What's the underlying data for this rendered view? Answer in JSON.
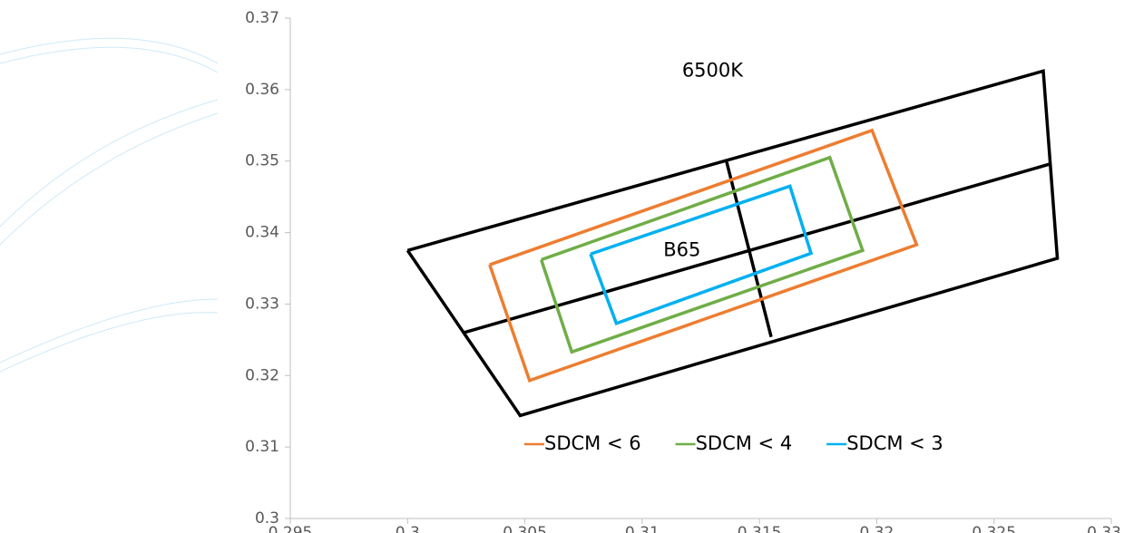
{
  "chart_data": {
    "type": "line",
    "xlim": [
      0.295,
      0.33
    ],
    "ylim": [
      0.3,
      0.37
    ],
    "xticks": [
      0.295,
      0.3,
      0.305,
      0.31,
      0.315,
      0.32,
      0.325,
      0.33
    ],
    "yticks": [
      0.3,
      0.31,
      0.32,
      0.33,
      0.34,
      0.35,
      0.36,
      0.37
    ],
    "annotations": [
      {
        "text": "6500K",
        "x": 0.313,
        "y": 0.3626
      },
      {
        "text": "B65",
        "x": 0.3117,
        "y": 0.3375
      }
    ],
    "series": [
      {
        "color": "#000000",
        "x": [
          0.3,
          0.3271,
          0.3277,
          0.3048,
          0.3
        ],
        "values": [
          0.3375,
          0.3626,
          0.3364,
          0.3144,
          0.3375
        ]
      },
      {
        "color": "#000000",
        "x": [
          0.3024,
          0.3274
        ],
        "values": [
          0.326,
          0.3496
        ]
      },
      {
        "color": "#000000",
        "x": [
          0.3136,
          0.3155
        ],
        "values": [
          0.3499,
          0.3254
        ]
      },
      {
        "name": "SDCM < 6",
        "color": "#ed7d31",
        "x": [
          0.3035,
          0.3198,
          0.3217,
          0.3052,
          0.3035
        ],
        "values": [
          0.3355,
          0.3543,
          0.3383,
          0.3193,
          0.3355
        ]
      },
      {
        "name": "SDCM < 4",
        "color": "#70ad47",
        "x": [
          0.3057,
          0.318,
          0.3194,
          0.307,
          0.3057
        ],
        "values": [
          0.3362,
          0.3505,
          0.3375,
          0.3233,
          0.3362
        ]
      },
      {
        "name": "SDCM < 3",
        "color": "#00b0f0",
        "x": [
          0.3078,
          0.3163,
          0.3172,
          0.3089,
          0.3078
        ],
        "values": [
          0.337,
          0.3465,
          0.3371,
          0.3273,
          0.337
        ]
      }
    ]
  }
}
